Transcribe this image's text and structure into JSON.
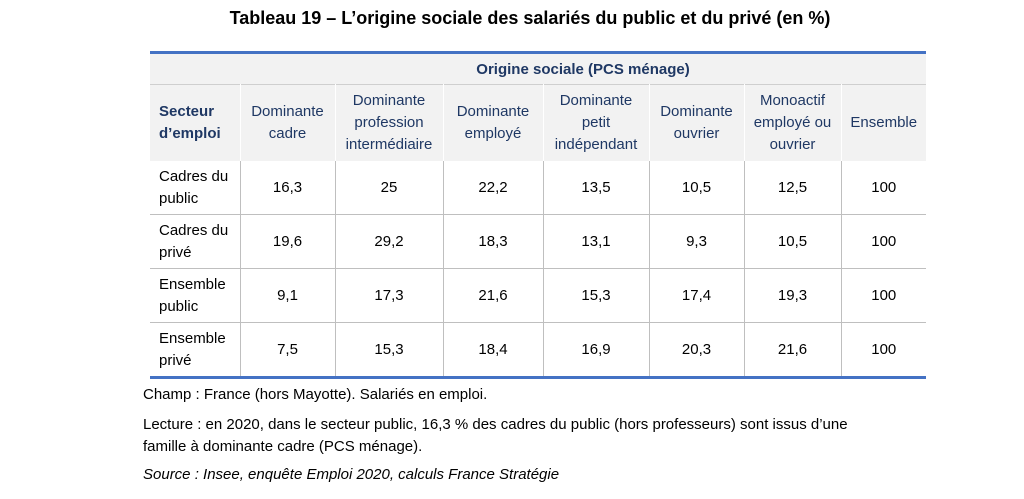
{
  "title": "Tableau 19 – L’origine sociale des salariés du public et du privé (en %)",
  "table": {
    "group_header": "Origine sociale (PCS ménage)",
    "row_header": "Secteur d’emploi",
    "columns": [
      "Dominante cadre",
      "Dominante profession intermédiaire",
      "Dominante employé",
      "Dominante petit indépendant",
      "Dominante ouvrier",
      "Monoactif employé ou ouvrier",
      "Ensemble"
    ],
    "rows": [
      {
        "label": "Cadres du public",
        "values": [
          "16,3",
          "25",
          "22,2",
          "13,5",
          "10,5",
          "12,5",
          "100"
        ]
      },
      {
        "label": "Cadres du privé",
        "values": [
          "19,6",
          "29,2",
          "18,3",
          "13,1",
          "9,3",
          "10,5",
          "100"
        ]
      },
      {
        "label": "Ensemble public",
        "values": [
          "9,1",
          "17,3",
          "21,6",
          "15,3",
          "17,4",
          "19,3",
          "100"
        ]
      },
      {
        "label": "Ensemble privé",
        "values": [
          "7,5",
          "15,3",
          "18,4",
          "16,9",
          "20,3",
          "21,6",
          "100"
        ]
      }
    ]
  },
  "notes": {
    "champ": "Champ : France (hors Mayotte). Salariés en emploi.",
    "lecture_line1": "Lecture : en 2020, dans le secteur public, 16,3 % des cadres du public (hors professeurs) sont issus d’une",
    "lecture_line2": "famille à dominante cadre (PCS ménage).",
    "source": "Source : Insee, enquête Emploi 2020, calculs France Stratégie"
  }
}
